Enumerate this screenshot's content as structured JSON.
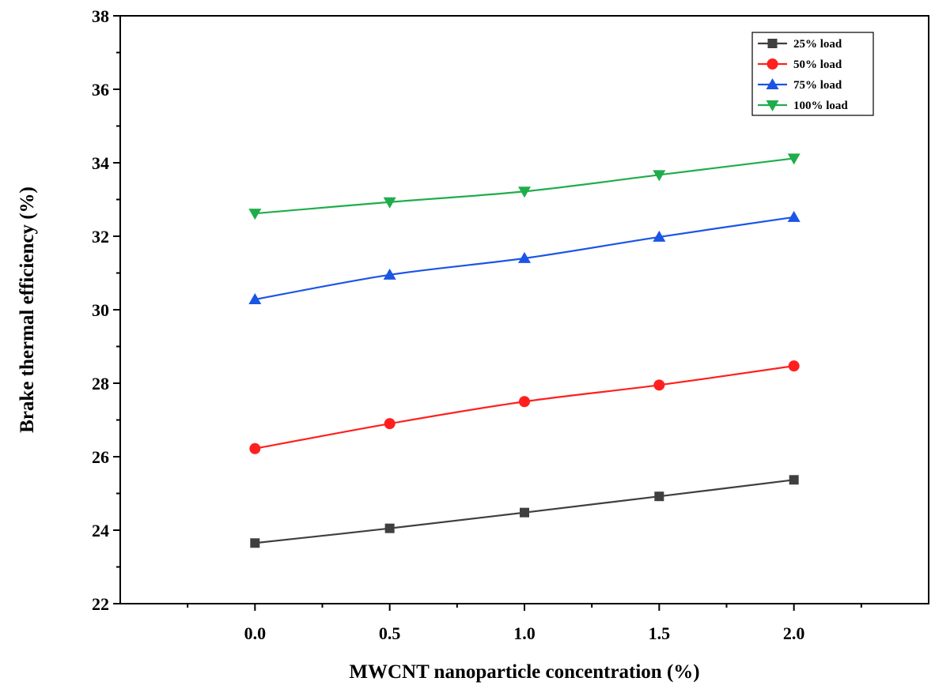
{
  "chart_data": {
    "type": "line",
    "title": "",
    "xlabel": "MWCNT nanoparticle concentration (%)",
    "ylabel": "Brake thermal efficiency (%)",
    "x": [
      0.0,
      0.5,
      1.0,
      1.5,
      2.0
    ],
    "xticks": [
      "0.0",
      "0.5",
      "1.0",
      "1.5",
      "2.0"
    ],
    "xlim": [
      -0.5,
      2.5
    ],
    "ylim": [
      22,
      38
    ],
    "yticks": [
      "22",
      "24",
      "26",
      "28",
      "30",
      "32",
      "34",
      "36",
      "38"
    ],
    "legend_position": "top-right",
    "grid": false,
    "series": [
      {
        "name": "25% load",
        "marker": "square",
        "color": "#3f3f3f",
        "values": [
          23.65,
          24.05,
          24.48,
          24.92,
          25.37
        ]
      },
      {
        "name": "50%  load",
        "marker": "circle",
        "color": "#ff1f1f",
        "values": [
          26.22,
          26.9,
          27.5,
          27.95,
          28.47
        ]
      },
      {
        "name": "75% load",
        "marker": "triangle-up",
        "color": "#1a55e6",
        "values": [
          30.28,
          30.95,
          31.4,
          31.98,
          32.52
        ]
      },
      {
        "name": "100% load",
        "marker": "triangle-down",
        "color": "#1fad4c",
        "values": [
          32.62,
          32.93,
          33.22,
          33.67,
          34.12
        ]
      }
    ]
  }
}
